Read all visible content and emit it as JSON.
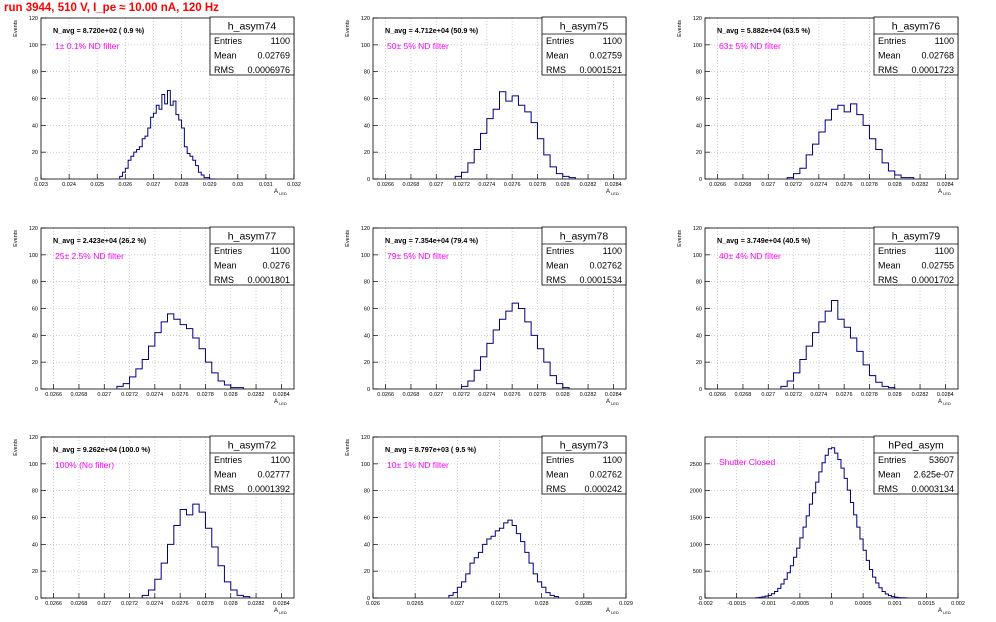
{
  "run_title": "run 3944,   510 V, I_pe ≈ 10.00 nA, 120 Hz",
  "colors": {
    "hist": "#000080",
    "annotation": "#ff00ff",
    "title": "#ff0000",
    "grid": "#b0b0b0"
  },
  "stats_labels": {
    "entries": "Entries",
    "mean": "Mean",
    "rms": "RMS"
  },
  "chart_data": [
    {
      "type": "bar",
      "name": "h_asym74",
      "navg": "N_avg = 8.720e+02 ( 0.9 %)",
      "note": "1± 0.1% ND filter",
      "entries": "1100",
      "mean": "0.02769",
      "rms": "0.0006976",
      "xlabel": "A",
      "xlabel_sub": "LED",
      "ylabel": "Events",
      "xlim": [
        0.023,
        0.032
      ],
      "ylim": [
        0,
        120
      ],
      "xticks": [
        0.023,
        0.024,
        0.025,
        0.026,
        0.027,
        0.028,
        0.029,
        0.03,
        0.031,
        0.032
      ],
      "xtick_labels": [
        "0.023",
        "0.024",
        "0.025",
        "0.026",
        "0.027",
        "0.028",
        "0.029",
        "0.03",
        "0.031",
        "0.032"
      ],
      "yticks": [
        0,
        20,
        40,
        60,
        80,
        100,
        120
      ],
      "edges": [
        0.0258,
        0.0259,
        0.026,
        0.0261,
        0.0262,
        0.0263,
        0.0264,
        0.0265,
        0.0266,
        0.0267,
        0.0268,
        0.0269,
        0.027,
        0.0271,
        0.0272,
        0.0273,
        0.0274,
        0.0275,
        0.0276,
        0.0277,
        0.0278,
        0.0279,
        0.028,
        0.0281,
        0.0282,
        0.0283,
        0.0284,
        0.0285,
        0.0286,
        0.0287,
        0.0288,
        0.0289,
        0.029,
        0.0291,
        0.0292
      ],
      "counts": [
        2,
        5,
        8,
        14,
        17,
        20,
        22,
        24,
        30,
        32,
        38,
        46,
        49,
        55,
        52,
        63,
        56,
        66,
        55,
        58,
        48,
        44,
        38,
        24,
        19,
        17,
        14,
        10,
        5,
        3,
        1,
        1,
        0,
        0
      ]
    },
    {
      "type": "bar",
      "name": "h_asym75",
      "navg": "N_avg = 4.712e+04 (50.9 %)",
      "note": "50± 5% ND filter",
      "entries": "1100",
      "mean": "0.02759",
      "rms": "0.0001521",
      "xlabel": "A",
      "xlabel_sub": "LED",
      "ylabel": "Events",
      "xlim": [
        0.0265,
        0.0285
      ],
      "ylim": [
        0,
        120
      ],
      "xticks": [
        0.0266,
        0.0268,
        0.027,
        0.0272,
        0.0274,
        0.0276,
        0.0278,
        0.028,
        0.0282,
        0.0284
      ],
      "xtick_labels": [
        "0.0266",
        "0.0268",
        "0.027",
        "0.0272",
        "0.0274",
        "0.0276",
        "0.0278",
        "0.028",
        "0.0282",
        "0.0284"
      ],
      "yticks": [
        0,
        20,
        40,
        60,
        80,
        100,
        120
      ],
      "edges": [
        0.02715,
        0.0272,
        0.02725,
        0.0273,
        0.02735,
        0.0274,
        0.02745,
        0.0275,
        0.02755,
        0.0276,
        0.02765,
        0.0277,
        0.02775,
        0.0278,
        0.02785,
        0.0279,
        0.02795,
        0.028,
        0.02805,
        0.0281
      ],
      "counts": [
        2,
        5,
        12,
        22,
        34,
        45,
        52,
        65,
        58,
        62,
        55,
        50,
        42,
        30,
        18,
        9,
        4,
        2,
        1
      ]
    },
    {
      "type": "bar",
      "name": "h_asym76",
      "navg": "N_avg = 5.882e+04 (63.5 %)",
      "note": "63± 5% ND filter",
      "entries": "1100",
      "mean": "0.02768",
      "rms": "0.0001723",
      "xlabel": "A",
      "xlabel_sub": "LED",
      "ylabel": "Events",
      "xlim": [
        0.0265,
        0.0285
      ],
      "ylim": [
        0,
        120
      ],
      "xticks": [
        0.0266,
        0.0268,
        0.027,
        0.0272,
        0.0274,
        0.0276,
        0.0278,
        0.028,
        0.0282,
        0.0284
      ],
      "xtick_labels": [
        "0.0266",
        "0.0268",
        "0.027",
        "0.0272",
        "0.0274",
        "0.0276",
        "0.0278",
        "0.028",
        "0.0282",
        "0.0284"
      ],
      "yticks": [
        0,
        20,
        40,
        60,
        80,
        100,
        120
      ],
      "edges": [
        0.02715,
        0.0272,
        0.02725,
        0.0273,
        0.02735,
        0.0274,
        0.02745,
        0.0275,
        0.02755,
        0.0276,
        0.02765,
        0.0277,
        0.02775,
        0.0278,
        0.02785,
        0.0279,
        0.02795,
        0.028,
        0.02805,
        0.0281,
        0.02815
      ],
      "counts": [
        1,
        4,
        8,
        18,
        26,
        35,
        44,
        52,
        55,
        50,
        56,
        48,
        40,
        30,
        22,
        12,
        6,
        3,
        1,
        1
      ]
    },
    {
      "type": "bar",
      "name": "h_asym77",
      "navg": "N_avg = 2.423e+04 (26.2 %)",
      "note": "25± 2.5% ND filter",
      "entries": "1100",
      "mean": "0.0276",
      "rms": "0.0001801",
      "xlabel": "A",
      "xlabel_sub": "LED",
      "ylabel": "Events",
      "xlim": [
        0.0265,
        0.0285
      ],
      "ylim": [
        0,
        120
      ],
      "xticks": [
        0.0266,
        0.0268,
        0.027,
        0.0272,
        0.0274,
        0.0276,
        0.0278,
        0.028,
        0.0282,
        0.0284
      ],
      "xtick_labels": [
        "0.0266",
        "0.0268",
        "0.027",
        "0.0272",
        "0.0274",
        "0.0276",
        "0.0278",
        "0.028",
        "0.0282",
        "0.0284"
      ],
      "yticks": [
        0,
        20,
        40,
        60,
        80,
        100,
        120
      ],
      "edges": [
        0.0271,
        0.02715,
        0.0272,
        0.02725,
        0.0273,
        0.02735,
        0.0274,
        0.02745,
        0.0275,
        0.02755,
        0.0276,
        0.02765,
        0.0277,
        0.02775,
        0.0278,
        0.02785,
        0.0279,
        0.02795,
        0.028,
        0.02805,
        0.0281
      ],
      "counts": [
        2,
        4,
        9,
        15,
        22,
        32,
        42,
        50,
        56,
        52,
        48,
        45,
        38,
        30,
        20,
        12,
        6,
        3,
        1,
        1
      ]
    },
    {
      "type": "bar",
      "name": "h_asym78",
      "navg": "N_avg = 7.354e+04 (79.4 %)",
      "note": "79± 5% ND filter",
      "entries": "1100",
      "mean": "0.02762",
      "rms": "0.0001534",
      "xlabel": "A",
      "xlabel_sub": "LED",
      "ylabel": "Events",
      "xlim": [
        0.0265,
        0.0285
      ],
      "ylim": [
        0,
        120
      ],
      "xticks": [
        0.0266,
        0.0268,
        0.027,
        0.0272,
        0.0274,
        0.0276,
        0.0278,
        0.028,
        0.0282,
        0.0284
      ],
      "xtick_labels": [
        "0.0266",
        "0.0268",
        "0.027",
        "0.0272",
        "0.0274",
        "0.0276",
        "0.0278",
        "0.028",
        "0.0282",
        "0.0284"
      ],
      "yticks": [
        0,
        20,
        40,
        60,
        80,
        100,
        120
      ],
      "edges": [
        0.0272,
        0.02725,
        0.0273,
        0.02735,
        0.0274,
        0.02745,
        0.0275,
        0.02755,
        0.0276,
        0.02765,
        0.0277,
        0.02775,
        0.0278,
        0.02785,
        0.0279,
        0.02795,
        0.028,
        0.02805
      ],
      "counts": [
        2,
        6,
        14,
        24,
        34,
        44,
        52,
        58,
        64,
        60,
        50,
        40,
        30,
        20,
        10,
        4,
        1
      ]
    },
    {
      "type": "bar",
      "name": "h_asym79",
      "navg": "N_avg = 3.749e+04 (40.5 %)",
      "note": "40± 4% ND filter",
      "entries": "1100",
      "mean": "0.02755",
      "rms": "0.0001702",
      "xlabel": "A",
      "xlabel_sub": "LED",
      "ylabel": "Events",
      "xlim": [
        0.0265,
        0.0285
      ],
      "ylim": [
        0,
        120
      ],
      "xticks": [
        0.0266,
        0.0268,
        0.027,
        0.0272,
        0.0274,
        0.0276,
        0.0278,
        0.028,
        0.0282,
        0.0284
      ],
      "xtick_labels": [
        "0.0266",
        "0.0268",
        "0.027",
        "0.0272",
        "0.0274",
        "0.0276",
        "0.0278",
        "0.028",
        "0.0282",
        "0.0284"
      ],
      "yticks": [
        0,
        20,
        40,
        60,
        80,
        100,
        120
      ],
      "edges": [
        0.0271,
        0.02715,
        0.0272,
        0.02725,
        0.0273,
        0.02735,
        0.0274,
        0.02745,
        0.0275,
        0.02755,
        0.0276,
        0.02765,
        0.0277,
        0.02775,
        0.0278,
        0.02785,
        0.0279,
        0.02795,
        0.028
      ],
      "counts": [
        2,
        6,
        12,
        22,
        32,
        42,
        50,
        58,
        66,
        52,
        46,
        38,
        28,
        18,
        10,
        5,
        2,
        1
      ]
    },
    {
      "type": "bar",
      "name": "h_asym72",
      "navg": "N_avg = 9.262e+04 (100.0 %)",
      "note": "100% (No filter)",
      "entries": "1100",
      "mean": "0.02777",
      "rms": "0.0001392",
      "xlabel": "A",
      "xlabel_sub": "LED",
      "ylabel": "Events",
      "xlim": [
        0.0265,
        0.0285
      ],
      "ylim": [
        0,
        120
      ],
      "xticks": [
        0.0266,
        0.0268,
        0.027,
        0.0272,
        0.0274,
        0.0276,
        0.0278,
        0.028,
        0.0282,
        0.0284
      ],
      "xtick_labels": [
        "0.0266",
        "0.0268",
        "0.027",
        "0.0272",
        "0.0274",
        "0.0276",
        "0.0278",
        "0.028",
        "0.0282",
        "0.0284"
      ],
      "yticks": [
        0,
        20,
        40,
        60,
        80,
        100,
        120
      ],
      "edges": [
        0.0273,
        0.02735,
        0.0274,
        0.02745,
        0.0275,
        0.02755,
        0.0276,
        0.02765,
        0.0277,
        0.02775,
        0.0278,
        0.02785,
        0.0279,
        0.02795,
        0.028,
        0.02805,
        0.0281,
        0.02815
      ],
      "counts": [
        2,
        6,
        14,
        26,
        40,
        54,
        66,
        62,
        70,
        64,
        52,
        38,
        24,
        12,
        6,
        2,
        1
      ]
    },
    {
      "type": "bar",
      "name": "h_asym73",
      "navg": "N_avg = 8.797e+03 ( 9.5 %)",
      "note": "10± 1% ND filter",
      "entries": "1100",
      "mean": "0.02762",
      "rms": "0.000242",
      "xlabel": "A",
      "xlabel_sub": "LED",
      "ylabel": "Events",
      "xlim": [
        0.026,
        0.029
      ],
      "ylim": [
        0,
        120
      ],
      "xticks": [
        0.026,
        0.0265,
        0.027,
        0.0275,
        0.028,
        0.0285,
        0.029
      ],
      "xtick_labels": [
        "0.026",
        "0.0265",
        "0.027",
        "0.0275",
        "0.028",
        "0.0285",
        "0.029"
      ],
      "yticks": [
        0,
        20,
        40,
        60,
        80,
        100,
        120
      ],
      "edges": [
        0.0269,
        0.02695,
        0.027,
        0.02705,
        0.0271,
        0.02715,
        0.0272,
        0.02725,
        0.0273,
        0.02735,
        0.0274,
        0.02745,
        0.0275,
        0.02755,
        0.0276,
        0.02765,
        0.0277,
        0.02775,
        0.0278,
        0.02785,
        0.0279,
        0.02795,
        0.028,
        0.02805,
        0.0281,
        0.02815,
        0.0282
      ],
      "counts": [
        2,
        4,
        8,
        12,
        18,
        26,
        30,
        34,
        40,
        44,
        46,
        50,
        52,
        56,
        58,
        54,
        48,
        42,
        34,
        26,
        18,
        12,
        8,
        4,
        2,
        1
      ]
    },
    {
      "type": "bar",
      "name": "hPed_asym",
      "navg": "",
      "note": "Shutter Closed",
      "entries": "53607",
      "mean": "2.625e-07",
      "rms": "0.0003134",
      "xlabel": "A",
      "xlabel_sub": "LED",
      "ylabel": "",
      "xlim": [
        -0.002,
        0.002
      ],
      "ylim": [
        0,
        3000
      ],
      "xticks": [
        -0.002,
        -0.0015,
        -0.001,
        -0.0005,
        0,
        0.0005,
        0.001,
        0.0015,
        0.002
      ],
      "xtick_labels": [
        "-0.002",
        "-0.0015",
        "-0.001",
        "-0.0005",
        "0",
        "0.0005",
        "0.001",
        "0.0015",
        "0.002"
      ],
      "yticks": [
        0,
        500,
        1000,
        1500,
        2000,
        2500
      ],
      "edges": [
        -0.0012,
        -0.00115,
        -0.0011,
        -0.00105,
        -0.001,
        -0.00095,
        -0.0009,
        -0.00085,
        -0.0008,
        -0.00075,
        -0.0007,
        -0.00065,
        -0.0006,
        -0.00055,
        -0.0005,
        -0.00045,
        -0.0004,
        -0.00035,
        -0.0003,
        -0.00025,
        -0.0002,
        -0.00015,
        -0.0001,
        -5e-05,
        0,
        5e-05,
        0.0001,
        0.00015,
        0.0002,
        0.00025,
        0.0003,
        0.00035,
        0.0004,
        0.00045,
        0.0005,
        0.00055,
        0.0006,
        0.00065,
        0.0007,
        0.00075,
        0.0008,
        0.00085,
        0.0009,
        0.00095,
        0.001,
        0.00105,
        0.0011,
        0.00115,
        0.0012
      ],
      "counts": [
        5,
        12,
        22,
        35,
        50,
        80,
        120,
        180,
        260,
        350,
        470,
        600,
        760,
        930,
        1120,
        1320,
        1530,
        1750,
        1960,
        2160,
        2350,
        2520,
        2660,
        2780,
        2800,
        2700,
        2580,
        2420,
        2230,
        2010,
        1780,
        1550,
        1320,
        1100,
        890,
        700,
        530,
        390,
        280,
        190,
        120,
        75,
        45,
        25,
        15,
        8,
        4,
        2
      ]
    }
  ]
}
